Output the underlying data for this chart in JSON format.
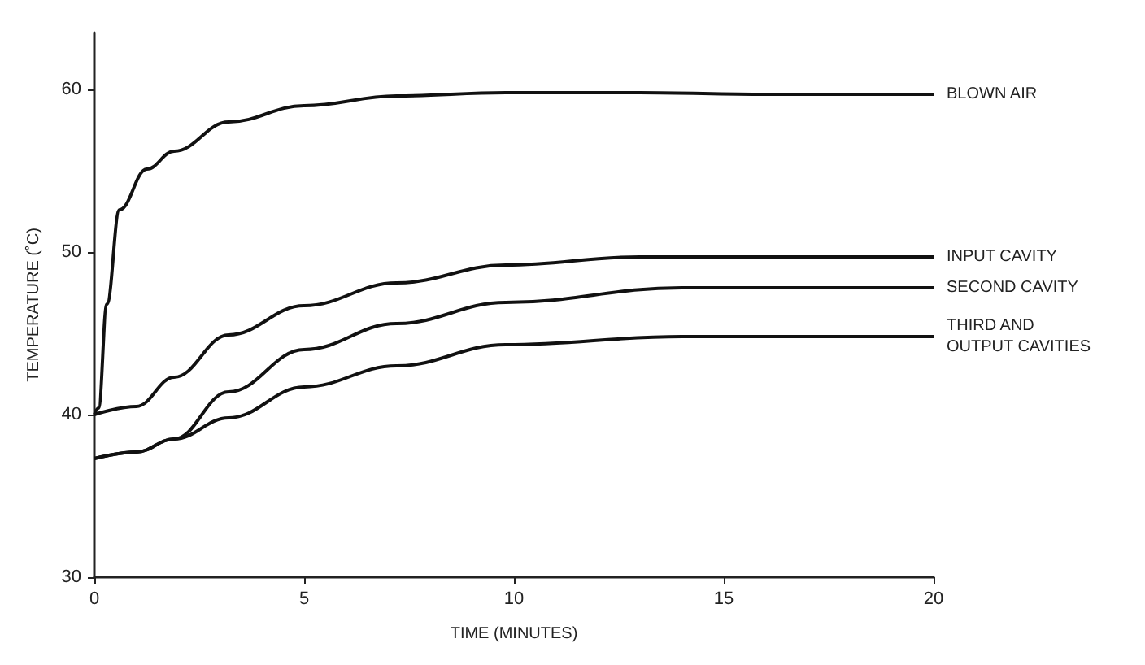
{
  "chart_data": {
    "type": "line",
    "xlabel": "TIME (MINUTES)",
    "ylabel": "TEMPERATURE (˚C)",
    "xlim": [
      0,
      20
    ],
    "xticks": [
      0,
      5,
      10,
      15,
      20
    ],
    "ylim": [
      30,
      63.5
    ],
    "yticks": [
      30,
      40,
      50,
      60
    ],
    "grid": false,
    "legend": false,
    "marker": "none",
    "line_style": "solid",
    "series": [
      {
        "name": "BLOWN AIR",
        "color": "#111111",
        "x": [
          0,
          0.1,
          0.3,
          0.6,
          1.25,
          1.9,
          3.2,
          5,
          7.2,
          9.8,
          13,
          16,
          20
        ],
        "values": [
          40,
          40.4,
          46.8,
          52.6,
          55.1,
          56.2,
          58,
          59,
          59.6,
          59.8,
          59.8,
          59.7,
          59.7
        ]
      },
      {
        "name": "INPUT CAVITY",
        "color": "#111111",
        "x": [
          0,
          1,
          1.9,
          3.2,
          5,
          7.2,
          9.8,
          13,
          16,
          20
        ],
        "values": [
          40,
          40.5,
          42.3,
          44.9,
          46.7,
          48.1,
          49.2,
          49.7,
          49.7,
          49.7
        ]
      },
      {
        "name": "SECOND CAVITY",
        "color": "#111111",
        "x": [
          0,
          1,
          1.9,
          3.2,
          5,
          7.2,
          9.8,
          14,
          17,
          20
        ],
        "values": [
          37.3,
          37.7,
          38.5,
          41.4,
          44,
          45.6,
          46.9,
          47.8,
          47.8,
          47.8
        ]
      },
      {
        "name": "THIRD AND OUTPUT CAVITIES",
        "color": "#111111",
        "x": [
          0,
          1,
          1.9,
          3.2,
          5,
          7.2,
          9.8,
          14,
          17,
          20
        ],
        "values": [
          37.3,
          37.7,
          38.5,
          39.8,
          41.7,
          43,
          44.3,
          44.8,
          44.8,
          44.8
        ]
      }
    ]
  }
}
